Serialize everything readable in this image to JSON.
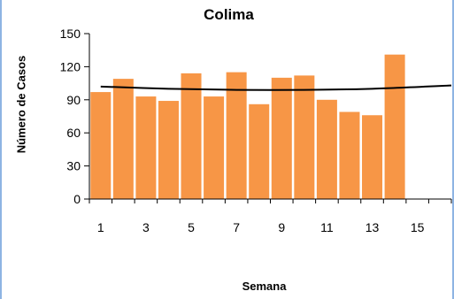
{
  "chart_data": {
    "type": "bar",
    "title": "Colima",
    "xlabel": "Semana",
    "ylabel": "Número de Casos",
    "ylim": [
      0,
      150
    ],
    "yticks": [
      0,
      30,
      60,
      90,
      120,
      150
    ],
    "xticks": [
      1,
      3,
      5,
      7,
      9,
      11,
      13,
      15
    ],
    "xlim": [
      0.5,
      16.5
    ],
    "categories": [
      1,
      2,
      3,
      4,
      5,
      6,
      7,
      8,
      9,
      10,
      11,
      12,
      13,
      14
    ],
    "values": [
      97,
      109,
      93,
      89,
      114,
      93,
      115,
      86,
      110,
      112,
      90,
      79,
      76,
      131
    ],
    "bar_color": "#f79646",
    "trendline": {
      "type": "polynomial",
      "color": "#000000",
      "x": [
        1,
        4,
        7,
        10,
        13,
        16.5
      ],
      "y": [
        102,
        100,
        99,
        99,
        100,
        103
      ]
    },
    "grid": false,
    "legend": "none"
  }
}
